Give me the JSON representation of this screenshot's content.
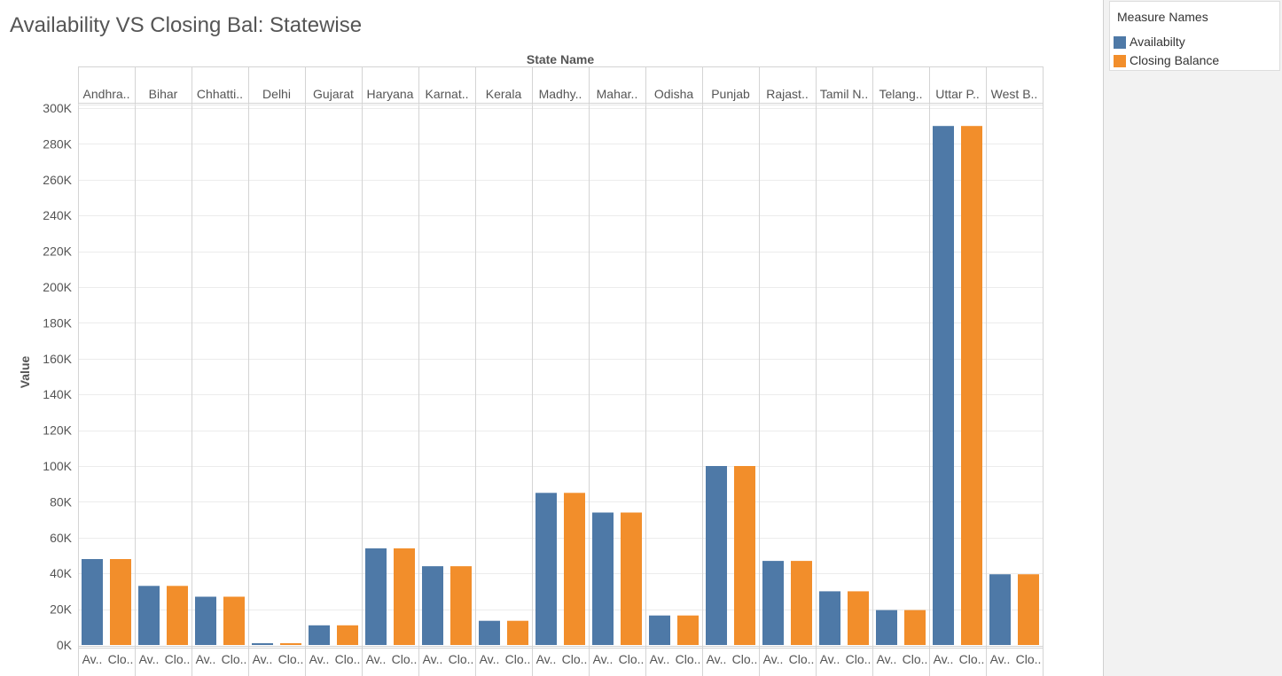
{
  "chart_data": {
    "type": "bar",
    "title": "Availability VS Closing Bal: Statewise",
    "column_header": "State Name",
    "ylabel": "Value",
    "ylim": [
      0,
      300000
    ],
    "yticks": [
      0,
      20000,
      40000,
      60000,
      80000,
      100000,
      120000,
      140000,
      160000,
      180000,
      200000,
      220000,
      240000,
      260000,
      280000,
      300000
    ],
    "ytick_labels": [
      "0K",
      "20K",
      "40K",
      "60K",
      "80K",
      "100K",
      "120K",
      "140K",
      "160K",
      "180K",
      "200K",
      "220K",
      "240K",
      "260K",
      "280K",
      "300K"
    ],
    "categories": [
      "Andhra..",
      "Bihar",
      "Chhatti..",
      "Delhi",
      "Gujarat",
      "Haryana",
      "Karnat..",
      "Kerala",
      "Madhy..",
      "Mahar..",
      "Odisha",
      "Punjab",
      "Rajast..",
      "Tamil N..",
      "Telang..",
      "Uttar P..",
      "West B.."
    ],
    "sub_labels": [
      "Av..",
      "Clo.."
    ],
    "series": [
      {
        "name": "Availabilty",
        "color": "#4e79a7",
        "values": [
          48000,
          33000,
          27000,
          1000,
          11000,
          54000,
          44000,
          13500,
          85000,
          74000,
          16500,
          100000,
          47000,
          30000,
          19500,
          290000,
          39500
        ]
      },
      {
        "name": "Closing Balance",
        "color": "#f28e2b",
        "values": [
          48000,
          33000,
          27000,
          1000,
          11000,
          54000,
          44000,
          13500,
          85000,
          74000,
          16500,
          100000,
          47000,
          30000,
          19500,
          290000,
          39500
        ]
      }
    ],
    "grid": true,
    "legend": {
      "title": "Measure Names",
      "placement": "top-right"
    }
  }
}
